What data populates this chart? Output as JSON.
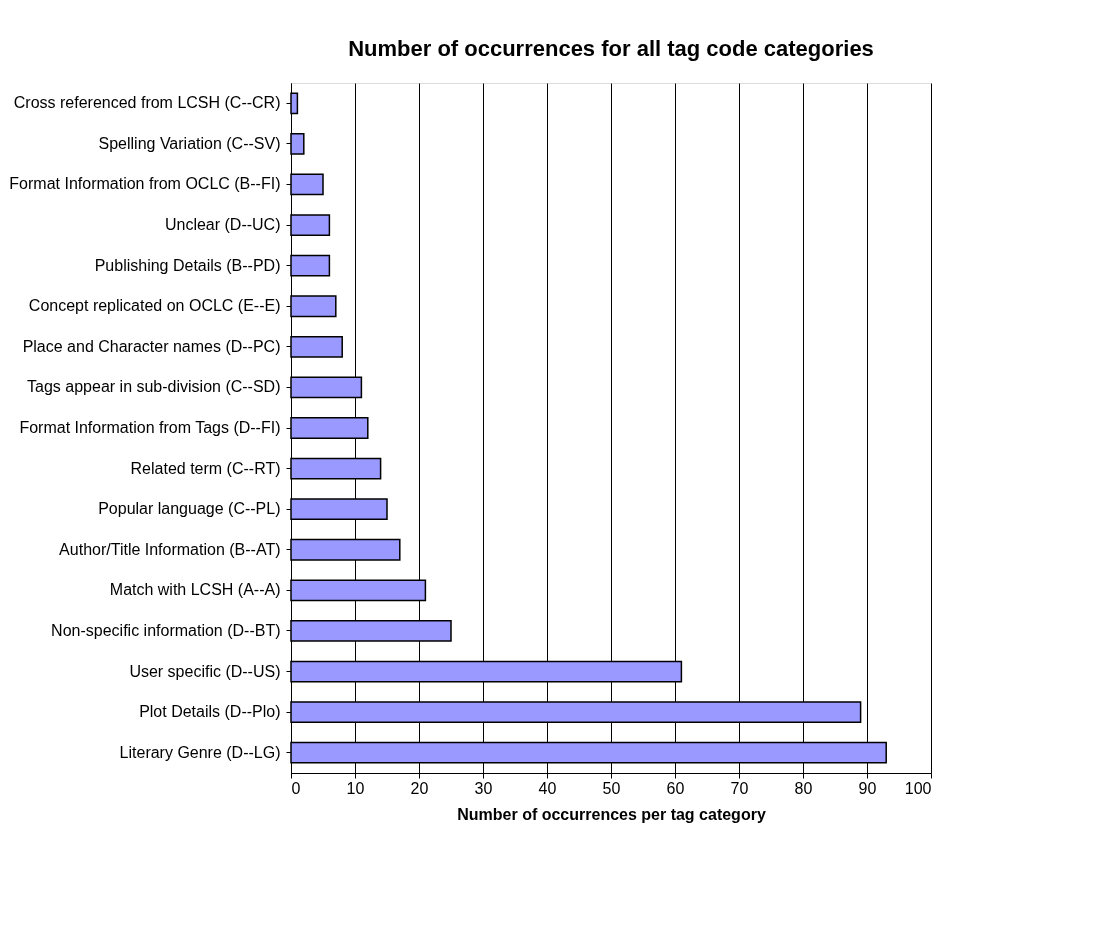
{
  "chart_data": {
    "type": "bar",
    "orientation": "horizontal",
    "title": "Number of occurrences for all tag code categories",
    "xlabel": "Number of occurrences per tag category",
    "categories": [
      "Cross referenced from LCSH (C--CR)",
      "Spelling Variation (C--SV)",
      "Format Information from OCLC (B--FI)",
      "Unclear (D--UC)",
      "Publishing Details (B--PD)",
      "Concept replicated on OCLC (E--E)",
      "Place and Character names (D--PC)",
      "Tags appear in sub-division (C--SD)",
      "Format Information from Tags (D--FI)",
      "Related term (C--RT)",
      "Popular language (C--PL)",
      "Author/Title Information (B--AT)",
      "Match with LCSH (A--A)",
      "Non-specific information (D--BT)",
      "User specific (D--US)",
      "Plot Details (D--Plo)",
      "Literary Genre (D--LG)"
    ],
    "values": [
      1,
      2,
      5,
      6,
      6,
      7,
      8,
      11,
      12,
      14,
      15,
      17,
      21,
      25,
      61,
      89,
      93
    ],
    "color": "#9999ff",
    "xlim": [
      0,
      100
    ],
    "xticks": [
      0,
      10,
      20,
      30,
      40,
      50,
      60,
      70,
      80,
      90,
      100
    ],
    "grid": "x"
  }
}
